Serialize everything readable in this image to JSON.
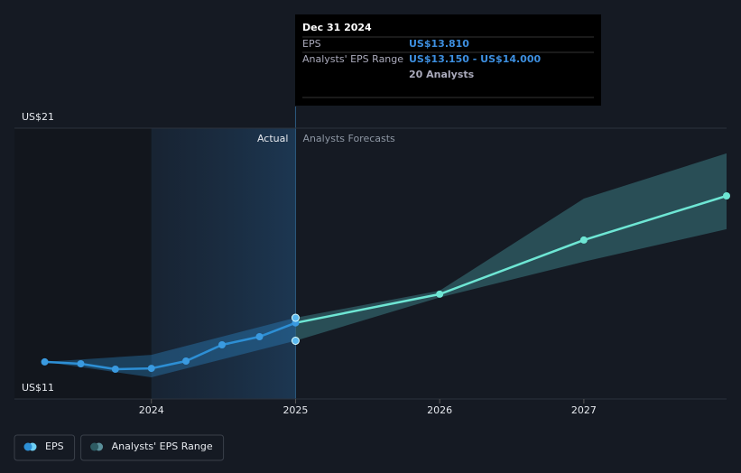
{
  "chart_data": {
    "type": "line",
    "labels": {
      "actual": "Actual",
      "forecast": "Analysts Forecasts"
    },
    "tooltip": {
      "date": "Dec 31 2024",
      "rows": [
        [
          "EPS",
          "US$13.810"
        ],
        [
          "Analysts' EPS Range",
          "US$13.150 - US$14.000"
        ],
        [
          "",
          "20 Analysts"
        ]
      ]
    },
    "xlim": [
      2023.05,
      2027.99
    ],
    "xticks": [
      2024,
      2025,
      2026,
      2027
    ],
    "ylim": [
      11,
      21
    ],
    "yticks": [
      {
        "value": 21,
        "label": "US$21"
      },
      {
        "value": 11,
        "label": "US$11"
      }
    ],
    "series": [
      {
        "name": "EPS",
        "color": "#2d8fd5",
        "x": [
          2023.26,
          2023.51,
          2023.75,
          2024.0,
          2024.24,
          2024.49,
          2024.75,
          2025.0
        ],
        "values": [
          12.37,
          12.3,
          12.1,
          12.13,
          12.4,
          13.0,
          13.3,
          13.81
        ]
      },
      {
        "name": "Analysts' EPS Range",
        "color": "#2e5b63",
        "x": [
          2023.26,
          2024.0,
          2025.0,
          2026.0,
          2027.0,
          2027.99
        ],
        "low": [
          12.37,
          11.8,
          13.15,
          14.75,
          16.07,
          17.27
        ],
        "high": [
          12.37,
          12.63,
          14.0,
          15.0,
          18.4,
          20.07
        ]
      }
    ],
    "forecast": {
      "color": "#6ee6d4",
      "x": [
        2025.0,
        2026.0,
        2027.0,
        2027.99
      ],
      "values": [
        13.81,
        14.87,
        16.87,
        18.5
      ]
    }
  }
}
